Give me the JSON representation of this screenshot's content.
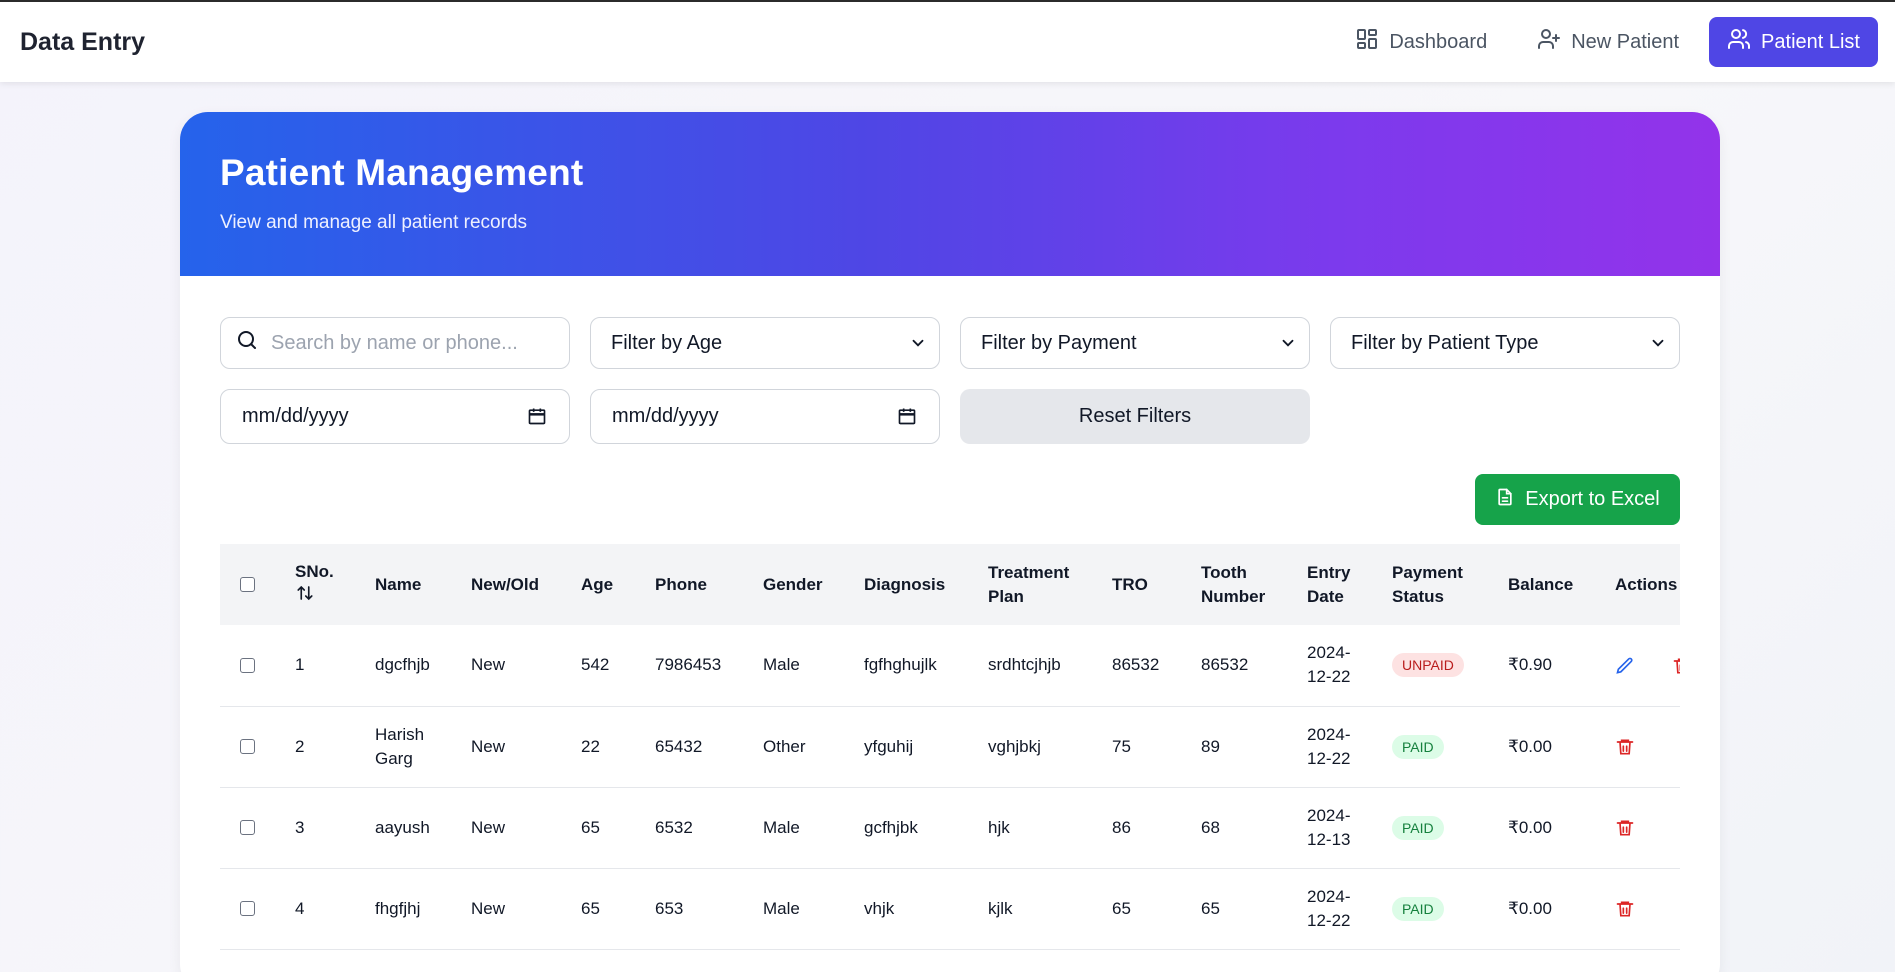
{
  "topbar": {
    "brand": "Data Entry",
    "nav": [
      {
        "label": "Dashboard",
        "icon": "dashboard-icon"
      },
      {
        "label": "New Patient",
        "icon": "user-plus-icon"
      },
      {
        "label": "Patient List",
        "icon": "users-icon",
        "active": true
      }
    ]
  },
  "hero": {
    "title": "Patient Management",
    "subtitle": "View and manage all patient records"
  },
  "filters": {
    "search_placeholder": "Search by name or phone...",
    "age": "Filter by Age",
    "payment": "Filter by Payment",
    "patient_type": "Filter by Patient Type",
    "date_from": "mm/dd/yyyy",
    "date_to": "mm/dd/yyyy",
    "reset": "Reset Filters"
  },
  "export_label": "Export to Excel",
  "table": {
    "headers": {
      "sno": "SNo.",
      "name": "Name",
      "new_old": "New/Old",
      "age": "Age",
      "phone": "Phone",
      "gender": "Gender",
      "diagnosis": "Diagnosis",
      "treatment_l1": "Treatment",
      "treatment_l2": "Plan",
      "tro": "TRO",
      "tooth_l1": "Tooth",
      "tooth_l2": "Number",
      "entry_l1": "Entry",
      "entry_l2": "Date",
      "payment_l1": "Payment",
      "payment_l2": "Status",
      "balance": "Balance",
      "actions": "Actions"
    },
    "rows": [
      {
        "sno": "1",
        "name_l1": "dgcfhjb",
        "name_l2": "",
        "type": "New",
        "age": "542",
        "phone": "7986453",
        "gender": "Male",
        "diagnosis": "fgfhghujlk",
        "plan": "srdhtcjhjb",
        "tro": "86532",
        "tooth": "86532",
        "date_l1": "2024-",
        "date_l2": "12-22",
        "status": "UNPAID",
        "balance": "₹0.90"
      },
      {
        "sno": "2",
        "name_l1": "Harish",
        "name_l2": "Garg",
        "type": "New",
        "age": "22",
        "phone": "65432",
        "gender": "Other",
        "diagnosis": "yfguhij",
        "plan": "vghjbkj",
        "tro": "75",
        "tooth": "89",
        "date_l1": "2024-",
        "date_l2": "12-22",
        "status": "PAID",
        "balance": "₹0.00"
      },
      {
        "sno": "3",
        "name_l1": "aayush",
        "name_l2": "",
        "type": "New",
        "age": "65",
        "phone": "6532",
        "gender": "Male",
        "diagnosis": "gcfhjbk",
        "plan": "hjk",
        "tro": "86",
        "tooth": "68",
        "date_l1": "2024-",
        "date_l2": "12-13",
        "status": "PAID",
        "balance": "₹0.00"
      },
      {
        "sno": "4",
        "name_l1": "fhgfjhj",
        "name_l2": "",
        "type": "New",
        "age": "65",
        "phone": "653",
        "gender": "Male",
        "diagnosis": "vhjk",
        "plan": "kjlk",
        "tro": "65",
        "tooth": "65",
        "date_l1": "2024-",
        "date_l2": "12-22",
        "status": "PAID",
        "balance": "₹0.00"
      }
    ]
  }
}
